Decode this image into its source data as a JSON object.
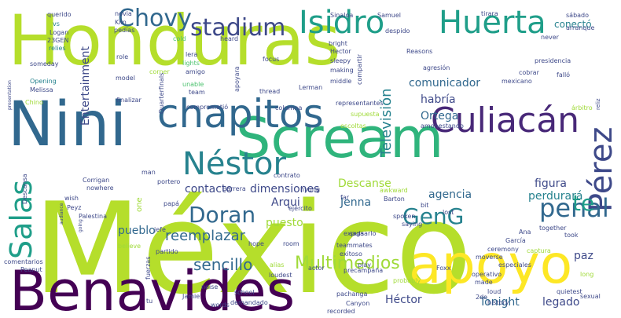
{
  "word_cloud": {
    "colors": {
      "yellow_green": "#b5de2b",
      "lime": "#a0da39",
      "green": "#4ac16d",
      "teal_green": "#2fb47c",
      "teal": "#1f9e89",
      "blue_teal": "#26828e",
      "steel": "#31688e",
      "indigo": "#3e4989",
      "purple": "#482878",
      "dark_purple": "#440154",
      "yellow": "#fde725",
      "yellow_light": "#d0e11c"
    },
    "words": [
      {
        "text": "Honduras",
        "color": "#b5de2b"
      },
      {
        "text": "México",
        "color": "#b5de2b"
      },
      {
        "text": "Benavides",
        "color": "#440154"
      },
      {
        "text": "Nini",
        "color": "#31688e"
      },
      {
        "text": "Scream",
        "color": "#2fb47c"
      },
      {
        "text": "apoyo",
        "color": "#fde725"
      },
      {
        "text": "chapitos",
        "color": "#31688e"
      },
      {
        "text": "Culiacán",
        "color": "#482878"
      },
      {
        "text": "Isidro",
        "color": "#1f9e89"
      },
      {
        "text": "Huerta",
        "color": "#1f9e89"
      },
      {
        "text": "Néstor",
        "color": "#26828e"
      },
      {
        "text": "Chovy",
        "color": "#31688e"
      },
      {
        "text": "stadium",
        "color": "#3e4989"
      },
      {
        "text": "Salas",
        "color": "#1f9e89"
      },
      {
        "text": "Pérez",
        "color": "#3e4989"
      },
      {
        "text": "penal",
        "color": "#31688e"
      },
      {
        "text": "Doran",
        "color": "#31688e"
      },
      {
        "text": "GenG",
        "color": "#26828e"
      },
      {
        "text": "te",
        "color": "#1f9e89"
      },
      {
        "text": "Multimedios",
        "color": "#a0da39"
      },
      {
        "text": "sencillo",
        "color": "#31688e"
      },
      {
        "text": "reemplazar",
        "color": "#31688e"
      },
      {
        "text": "Televisión",
        "color": "#26828e"
      },
      {
        "text": "comunicador",
        "color": "#31688e"
      },
      {
        "text": "habría",
        "color": "#3e4989"
      },
      {
        "text": "Ortega",
        "color": "#31688e"
      },
      {
        "text": "Entertainment",
        "color": "#3e4989"
      },
      {
        "text": "contacto",
        "color": "#3e4989"
      },
      {
        "text": "dimensiones",
        "color": "#3e4989"
      },
      {
        "text": "Descanse",
        "color": "#a0da39"
      },
      {
        "text": "figura",
        "color": "#3e4989"
      },
      {
        "text": "agencia",
        "color": "#31688e"
      },
      {
        "text": "perdurará",
        "color": "#26828e"
      },
      {
        "text": "Arqui",
        "color": "#3e4989"
      },
      {
        "text": "Jenna",
        "color": "#31688e"
      },
      {
        "text": "puesto",
        "color": "#a0da39"
      },
      {
        "text": "pueblo",
        "color": "#31688e"
      },
      {
        "text": "paz",
        "color": "#3e4989"
      },
      {
        "text": "Tonight",
        "color": "#31688e"
      },
      {
        "text": "Héctor",
        "color": "#3e4989"
      },
      {
        "text": "legado",
        "color": "#3e4989"
      },
      {
        "text": "conectó",
        "color": "#26828e"
      },
      {
        "text": "querido",
        "color": "#3e4989"
      },
      {
        "text": "vs",
        "color": "#26828e"
      },
      {
        "text": "Logan",
        "color": "#3e4989"
      },
      {
        "text": "23GEN",
        "color": "#3e4989"
      },
      {
        "text": "relies",
        "color": "#26828e"
      },
      {
        "text": "novia",
        "color": "#3e4989"
      },
      {
        "text": "Kiin",
        "color": "#3e4989"
      },
      {
        "text": "pedías",
        "color": "#3e4989"
      },
      {
        "text": "Sinaloa",
        "color": "#3e4989"
      },
      {
        "text": "Samuel",
        "color": "#3e4989"
      },
      {
        "text": "despido",
        "color": "#3e4989"
      },
      {
        "text": "tirara",
        "color": "#3e4989"
      },
      {
        "text": "sábado",
        "color": "#3e4989"
      },
      {
        "text": "arranque",
        "color": "#3e4989"
      },
      {
        "text": "presidencia",
        "color": "#3e4989"
      },
      {
        "text": "cold",
        "color": "#4ac16d"
      },
      {
        "text": "heard",
        "color": "#3e4989"
      },
      {
        "text": "bright",
        "color": "#3e4989"
      },
      {
        "text": "Hector",
        "color": "#3e4989"
      },
      {
        "text": "never",
        "color": "#3e4989"
      },
      {
        "text": "role",
        "color": "#3e4989"
      },
      {
        "text": "lera",
        "color": "#3e4989"
      },
      {
        "text": "lights",
        "color": "#4ac16d"
      },
      {
        "text": "amigo",
        "color": "#3e4989"
      },
      {
        "text": "focus",
        "color": "#3e4989"
      },
      {
        "text": "sleepy",
        "color": "#3e4989"
      },
      {
        "text": "making",
        "color": "#3e4989"
      },
      {
        "text": "compartir",
        "color": "#3e4989"
      },
      {
        "text": "Reasons",
        "color": "#3e4989"
      },
      {
        "text": "agresión",
        "color": "#3e4989"
      },
      {
        "text": "falló",
        "color": "#3e4989"
      },
      {
        "text": "cobrar",
        "color": "#3e4989"
      },
      {
        "text": "mexicano",
        "color": "#3e4989"
      },
      {
        "text": "Lerman",
        "color": "#3e4989"
      },
      {
        "text": "thread",
        "color": "#3e4989"
      },
      {
        "text": "middle",
        "color": "#3e4989"
      },
      {
        "text": "apoyara",
        "color": "#3e4989"
      },
      {
        "text": "corner",
        "color": "#a0da39"
      },
      {
        "text": "model",
        "color": "#3e4989"
      },
      {
        "text": "unable",
        "color": "#4ac16d"
      },
      {
        "text": "team",
        "color": "#3e4989"
      },
      {
        "text": "Quarterfinals",
        "color": "#3e4989"
      },
      {
        "text": "someday",
        "color": "#3e4989"
      },
      {
        "text": "Opening",
        "color": "#26828e"
      },
      {
        "text": "Melissa",
        "color": "#3e4989"
      },
      {
        "text": "Chino",
        "color": "#a0da39"
      },
      {
        "text": "finalizar",
        "color": "#3e4989"
      },
      {
        "text": "comprometió",
        "color": "#3e4989"
      },
      {
        "text": "columna",
        "color": "#3e4989"
      },
      {
        "text": "representantes",
        "color": "#3e4989"
      },
      {
        "text": "escoltas",
        "color": "#a0da39"
      },
      {
        "text": "árbitro",
        "color": "#a0da39"
      },
      {
        "text": "amonestando",
        "color": "#3e4989"
      },
      {
        "text": "supuesta",
        "color": "#a0da39"
      },
      {
        "text": "man",
        "color": "#3e4989"
      },
      {
        "text": "portero",
        "color": "#3e4989"
      },
      {
        "text": "Barrera",
        "color": "#3e4989"
      },
      {
        "text": "hyung",
        "color": "#3e4989"
      },
      {
        "text": "far",
        "color": "#3e4989"
      },
      {
        "text": "awkward",
        "color": "#a0da39"
      },
      {
        "text": "Barton",
        "color": "#3e4989"
      },
      {
        "text": "bit",
        "color": "#3e4989"
      },
      {
        "text": "Corrigan",
        "color": "#3e4989"
      },
      {
        "text": "nowhere",
        "color": "#3e4989"
      },
      {
        "text": "papá",
        "color": "#3e4989"
      },
      {
        "text": "wish",
        "color": "#3e4989"
      },
      {
        "text": "Peyz",
        "color": "#3e4989"
      },
      {
        "text": "Palestina",
        "color": "#3e4989"
      },
      {
        "text": "contrato",
        "color": "#3e4989"
      },
      {
        "text": "ejército",
        "color": "#3e4989"
      },
      {
        "text": "lost",
        "color": "#3e4989"
      },
      {
        "text": "spoken",
        "color": "#3e4989"
      },
      {
        "text": "saying",
        "color": "#3e4989"
      },
      {
        "text": "together",
        "color": "#3e4989"
      },
      {
        "text": "took",
        "color": "#3e4989"
      },
      {
        "text": "jefe",
        "color": "#3e4989"
      },
      {
        "text": "believe",
        "color": "#a0da39"
      },
      {
        "text": "partido",
        "color": "#3e4989"
      },
      {
        "text": "hope",
        "color": "#3e4989"
      },
      {
        "text": "room",
        "color": "#3e4989"
      },
      {
        "text": "expulsarlo",
        "color": "#3e4989"
      },
      {
        "text": "teammates",
        "color": "#3e4989"
      },
      {
        "text": "exitoso",
        "color": "#3e4989"
      },
      {
        "text": "García",
        "color": "#3e4989"
      },
      {
        "text": "Ana",
        "color": "#3e4989"
      },
      {
        "text": "ceremony",
        "color": "#3e4989"
      },
      {
        "text": "moverse",
        "color": "#3e4989"
      },
      {
        "text": "especiales",
        "color": "#3e4989"
      },
      {
        "text": "captura",
        "color": "#a0da39"
      },
      {
        "text": "operativo",
        "color": "#3e4989"
      },
      {
        "text": "precampaña",
        "color": "#3e4989"
      },
      {
        "text": "alias",
        "color": "#a0da39"
      },
      {
        "text": "actor",
        "color": "#3e4989"
      },
      {
        "text": "loudest",
        "color": "#3e4989"
      },
      {
        "text": "play",
        "color": "#3e4989"
      },
      {
        "text": "Foxx",
        "color": "#3e4989"
      },
      {
        "text": "made",
        "color": "#3e4989"
      },
      {
        "text": "loud",
        "color": "#3e4989"
      },
      {
        "text": "quietest",
        "color": "#3e4989"
      },
      {
        "text": "fuerzas",
        "color": "#3e4989"
      },
      {
        "text": "school",
        "color": "#3e4989"
      },
      {
        "text": "demandado",
        "color": "#3e4989"
      },
      {
        "text": "noise",
        "color": "#3e4989"
      },
      {
        "text": "Jamie",
        "color": "#3e4989"
      },
      {
        "text": "comentarios",
        "color": "#3e4989"
      },
      {
        "text": "Peanut",
        "color": "#3e4989"
      },
      {
        "text": "tu",
        "color": "#3e4989"
      },
      {
        "text": "words",
        "color": "#3e4989"
      },
      {
        "text": "pachanga",
        "color": "#3e4989"
      },
      {
        "text": "Canyon",
        "color": "#3e4989"
      },
      {
        "text": "recorded",
        "color": "#3e4989"
      },
      {
        "text": "2do",
        "color": "#3e4989"
      },
      {
        "text": "long",
        "color": "#a0da39"
      },
      {
        "text": "sexual",
        "color": "#3e4989"
      },
      {
        "text": "saga",
        "color": "#3e4989"
      },
      {
        "text": "probably",
        "color": "#a0da39"
      },
      {
        "text": "history",
        "color": "#3e4989"
      },
      {
        "text": "Descansa",
        "color": "#3e4989"
      },
      {
        "text": "audiance",
        "color": "#3e4989"
      },
      {
        "text": "going",
        "color": "#3e4989"
      },
      {
        "text": "presentation",
        "color": "#3e4989"
      },
      {
        "text": "reliz",
        "color": "#3e4989"
      },
      {
        "text": "one",
        "color": "#a0da39"
      }
    ]
  }
}
